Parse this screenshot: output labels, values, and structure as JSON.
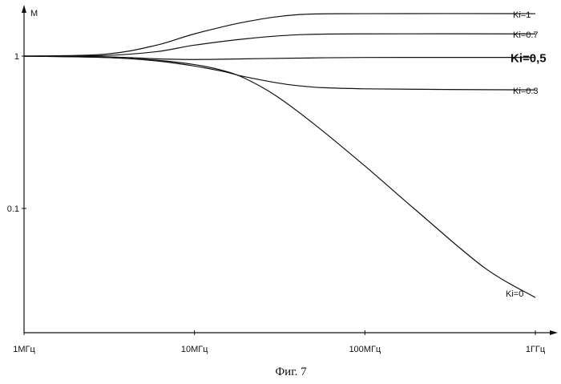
{
  "chart_data": {
    "type": "line",
    "xscale": "log",
    "yscale": "log",
    "xlim": [
      1000000,
      1000000000
    ],
    "ylim": [
      0.025,
      1.9
    ],
    "ylabel": "M",
    "xticks": [
      {
        "value": 1000000,
        "label": "1МГц"
      },
      {
        "value": 10000000,
        "label": "10МГц"
      },
      {
        "value": 100000000,
        "label": "100МГц"
      },
      {
        "value": 1000000000,
        "label": "1ГГц"
      }
    ],
    "yticks": [
      {
        "value": 1,
        "label": "1"
      },
      {
        "value": 0.1,
        "label": "0.1"
      }
    ],
    "series": [
      {
        "name": "Ki=1",
        "x": [
          1000000,
          3000000,
          6000000,
          10000000,
          20000000,
          40000000,
          100000000,
          1000000000
        ],
        "y": [
          1.0,
          1.03,
          1.18,
          1.4,
          1.68,
          1.87,
          1.9,
          1.9
        ]
      },
      {
        "name": "Ki=0.7",
        "x": [
          1000000,
          3000000,
          6000000,
          10000000,
          20000000,
          40000000,
          100000000,
          1000000000
        ],
        "y": [
          1.0,
          1.01,
          1.07,
          1.18,
          1.3,
          1.38,
          1.4,
          1.4
        ]
      },
      {
        "name": "Ki=0,5",
        "x": [
          1000000,
          3000000,
          6000000,
          10000000,
          20000000,
          40000000,
          100000000,
          1000000000
        ],
        "y": [
          1.0,
          0.99,
          0.96,
          0.95,
          0.96,
          0.97,
          0.98,
          0.98
        ]
      },
      {
        "name": "Ki=0.3",
        "x": [
          1000000,
          3000000,
          6000000,
          10000000,
          15000000,
          20000000,
          40000000,
          100000000,
          1000000000
        ],
        "y": [
          1.0,
          0.98,
          0.93,
          0.86,
          0.79,
          0.73,
          0.64,
          0.61,
          0.6
        ]
      },
      {
        "name": "Ki=0",
        "x": [
          1000000,
          3000000,
          6000000,
          10000000,
          15000000,
          20000000,
          30000000,
          50000000,
          100000000,
          200000000,
          500000000,
          1000000000
        ],
        "y": [
          1.0,
          0.98,
          0.94,
          0.88,
          0.8,
          0.71,
          0.55,
          0.36,
          0.19,
          0.097,
          0.041,
          0.026
        ]
      }
    ],
    "caption": "Фиг. 7"
  }
}
